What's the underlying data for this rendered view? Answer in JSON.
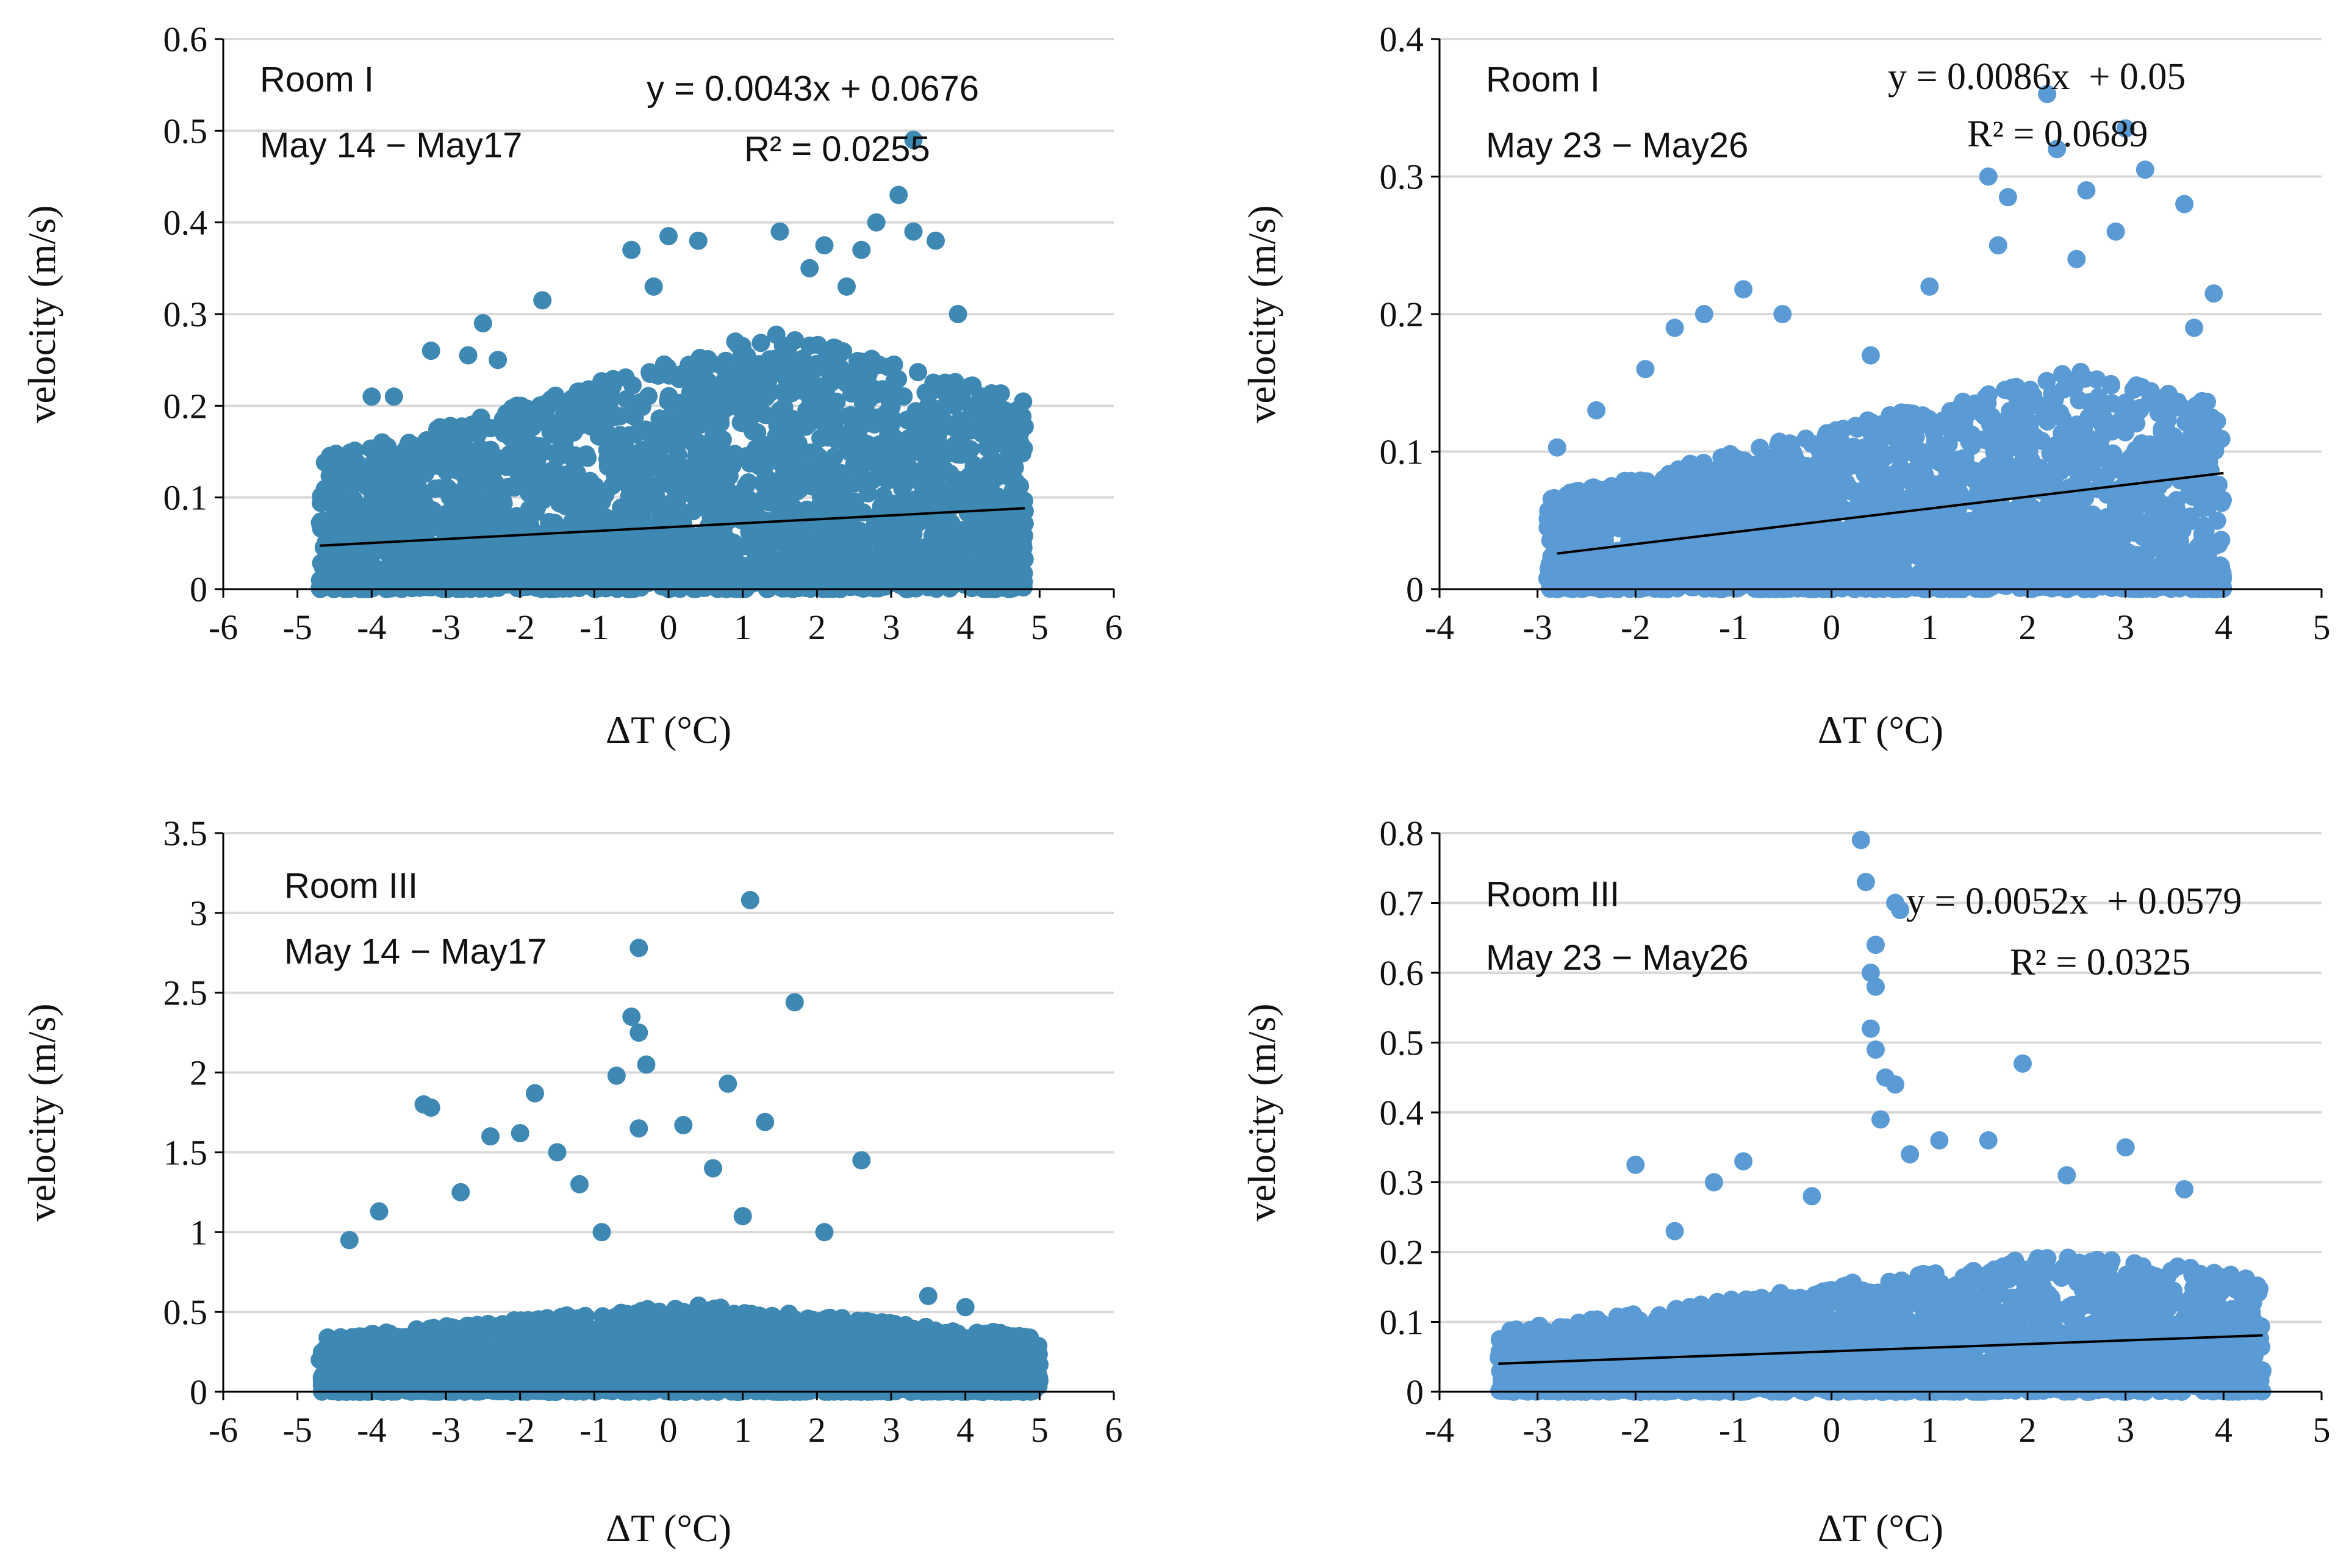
{
  "chart_data": [
    {
      "type": "scatter",
      "panel": "top-left",
      "room_label": "Room I",
      "date_label": "May 14 − May17",
      "equation": "y = 0.0043x + 0.0676",
      "r_squared": "R² = 0.0255",
      "xlabel": "ΔT (°C)",
      "ylabel": "velocity (m/s)",
      "xlim": [
        -6,
        6
      ],
      "ylim": [
        0,
        0.6
      ],
      "xticks": [
        "-6",
        "-5",
        "-4",
        "-3",
        "-2",
        "-1",
        "0",
        "1",
        "2",
        "3",
        "4",
        "5",
        "6"
      ],
      "yticks": [
        "0",
        "0.1",
        "0.2",
        "0.3",
        "0.4",
        "0.5",
        "0.6"
      ],
      "marker_color": "#3e88b4",
      "trendline": {
        "slope": 0.0043,
        "intercept": 0.0676,
        "x_range": [
          -4.7,
          4.8
        ]
      },
      "point_cloud": {
        "count": 2600,
        "x_range": [
          -4.7,
          4.8
        ],
        "y_max": 0.28,
        "center": 1.5,
        "seed": 11
      },
      "points": [
        [
          3.3,
          0.49
        ],
        [
          3.1,
          0.43
        ],
        [
          3.3,
          0.39
        ],
        [
          3.6,
          0.38
        ],
        [
          1.5,
          0.39
        ],
        [
          0.0,
          0.385
        ],
        [
          0.4,
          0.38
        ],
        [
          -0.5,
          0.37
        ],
        [
          2.1,
          0.375
        ],
        [
          2.6,
          0.37
        ],
        [
          2.8,
          0.4
        ],
        [
          1.9,
          0.35
        ],
        [
          -1.7,
          0.315
        ],
        [
          -2.5,
          0.29
        ],
        [
          -3.2,
          0.26
        ],
        [
          -2.7,
          0.255
        ],
        [
          -4.0,
          0.21
        ],
        [
          -3.7,
          0.21
        ],
        [
          -2.3,
          0.25
        ],
        [
          3.9,
          0.3
        ],
        [
          -0.2,
          0.33
        ],
        [
          0.9,
          0.27
        ],
        [
          2.4,
          0.33
        ],
        [
          -1.4,
          0.2
        ]
      ]
    },
    {
      "type": "scatter",
      "panel": "top-right",
      "room_label": "Room I",
      "date_label": "May 23 − May26",
      "equation": "y = 0.0086x  + 0.05",
      "r_squared": "R² = 0.0689",
      "xlabel": "ΔT (°C)",
      "ylabel": "velocity (m/s)",
      "xlim": [
        -4,
        5
      ],
      "ylim": [
        0,
        0.4
      ],
      "xticks": [
        "-4",
        "-3",
        "-2",
        "-1",
        "0",
        "1",
        "2",
        "3",
        "4",
        "5"
      ],
      "yticks": [
        "0",
        "0.1",
        "0.2",
        "0.3",
        "0.4"
      ],
      "marker_color": "#5b9bd5",
      "trendline": {
        "slope": 0.0086,
        "intercept": 0.05,
        "x_range": [
          -2.8,
          4.0
        ]
      },
      "point_cloud": {
        "count": 2400,
        "x_range": [
          -2.9,
          4.0
        ],
        "y_max": 0.16,
        "center": 2.5,
        "seed": 23
      },
      "points": [
        [
          2.2,
          0.36
        ],
        [
          3.0,
          0.335
        ],
        [
          2.3,
          0.32
        ],
        [
          3.2,
          0.305
        ],
        [
          1.6,
          0.3
        ],
        [
          1.8,
          0.285
        ],
        [
          2.6,
          0.29
        ],
        [
          1.7,
          0.25
        ],
        [
          2.9,
          0.26
        ],
        [
          3.6,
          0.28
        ],
        [
          -0.5,
          0.2
        ],
        [
          -0.9,
          0.218
        ],
        [
          -1.3,
          0.2
        ],
        [
          -1.6,
          0.19
        ],
        [
          -2.4,
          0.13
        ],
        [
          -2.8,
          0.103
        ],
        [
          3.9,
          0.215
        ],
        [
          3.7,
          0.19
        ],
        [
          1.0,
          0.22
        ],
        [
          0.4,
          0.17
        ],
        [
          -1.9,
          0.16
        ],
        [
          2.5,
          0.24
        ]
      ]
    },
    {
      "type": "scatter",
      "panel": "bottom-left",
      "room_label": "Room III",
      "date_label": "May 14 − May17",
      "xlabel": "ΔT (°C)",
      "ylabel": "velocity (m/s)",
      "xlim": [
        -6,
        6
      ],
      "ylim": [
        0,
        3.5
      ],
      "xticks": [
        "-6",
        "-5",
        "-4",
        "-3",
        "-2",
        "-1",
        "0",
        "1",
        "2",
        "3",
        "4",
        "5",
        "6"
      ],
      "yticks": [
        "0",
        "0.5",
        "1",
        "1.5",
        "2",
        "2.5",
        "3",
        "3.5"
      ],
      "marker_color": "#3e88b4",
      "point_cloud": {
        "count": 2600,
        "x_range": [
          -4.7,
          5.0
        ],
        "y_max": 0.55,
        "center": 0.3,
        "seed": 37
      },
      "points": [
        [
          1.1,
          3.08
        ],
        [
          -0.4,
          2.78
        ],
        [
          1.7,
          2.44
        ],
        [
          -0.5,
          2.35
        ],
        [
          -0.4,
          2.25
        ],
        [
          -0.3,
          2.05
        ],
        [
          -0.7,
          1.98
        ],
        [
          0.8,
          1.93
        ],
        [
          -1.8,
          1.87
        ],
        [
          -3.2,
          1.78
        ],
        [
          -3.3,
          1.8
        ],
        [
          -2.4,
          1.6
        ],
        [
          -2.0,
          1.62
        ],
        [
          -1.5,
          1.5
        ],
        [
          -0.4,
          1.65
        ],
        [
          0.2,
          1.67
        ],
        [
          1.3,
          1.69
        ],
        [
          2.6,
          1.45
        ],
        [
          -3.9,
          1.13
        ],
        [
          -4.3,
          0.95
        ],
        [
          -2.8,
          1.25
        ],
        [
          -1.2,
          1.3
        ],
        [
          0.6,
          1.4
        ],
        [
          1.0,
          1.1
        ],
        [
          2.1,
          1.0
        ],
        [
          3.5,
          0.6
        ],
        [
          4.0,
          0.53
        ],
        [
          -4.7,
          0.2
        ],
        [
          4.9,
          0.1
        ],
        [
          -0.9,
          1.0
        ]
      ]
    },
    {
      "type": "scatter",
      "panel": "bottom-right",
      "room_label": "Room III",
      "date_label": "May 23 − May26",
      "equation": "y = 0.0052x  + 0.0579",
      "r_squared": "R² = 0.0325",
      "xlabel": "ΔT (°C)",
      "ylabel": "velocity (m/s)",
      "xlim": [
        -4,
        5
      ],
      "ylim": [
        0,
        0.8
      ],
      "xticks": [
        "-4",
        "-3",
        "-2",
        "-1",
        "0",
        "1",
        "2",
        "3",
        "4",
        "5"
      ],
      "yticks": [
        "0",
        "0.1",
        "0.2",
        "0.3",
        "0.4",
        "0.5",
        "0.6",
        "0.7",
        "0.8"
      ],
      "marker_color": "#5b9bd5",
      "trendline": {
        "slope": 0.0052,
        "intercept": 0.0579,
        "x_range": [
          -3.4,
          4.4
        ]
      },
      "point_cloud": {
        "count": 2400,
        "x_range": [
          -3.4,
          4.4
        ],
        "y_max": 0.2,
        "center": 2.5,
        "seed": 53
      },
      "points": [
        [
          0.3,
          0.79
        ],
        [
          0.35,
          0.73
        ],
        [
          0.7,
          0.69
        ],
        [
          0.65,
          0.7
        ],
        [
          0.45,
          0.64
        ],
        [
          0.4,
          0.6
        ],
        [
          0.45,
          0.58
        ],
        [
          0.4,
          0.52
        ],
        [
          0.45,
          0.49
        ],
        [
          0.55,
          0.45
        ],
        [
          0.65,
          0.44
        ],
        [
          1.95,
          0.47
        ],
        [
          0.5,
          0.39
        ],
        [
          1.1,
          0.36
        ],
        [
          1.6,
          0.36
        ],
        [
          0.8,
          0.34
        ],
        [
          3.0,
          0.35
        ],
        [
          -2.0,
          0.325
        ],
        [
          -0.9,
          0.33
        ],
        [
          -1.2,
          0.3
        ],
        [
          -0.2,
          0.28
        ],
        [
          2.4,
          0.31
        ],
        [
          3.6,
          0.29
        ],
        [
          -1.6,
          0.23
        ]
      ]
    }
  ]
}
